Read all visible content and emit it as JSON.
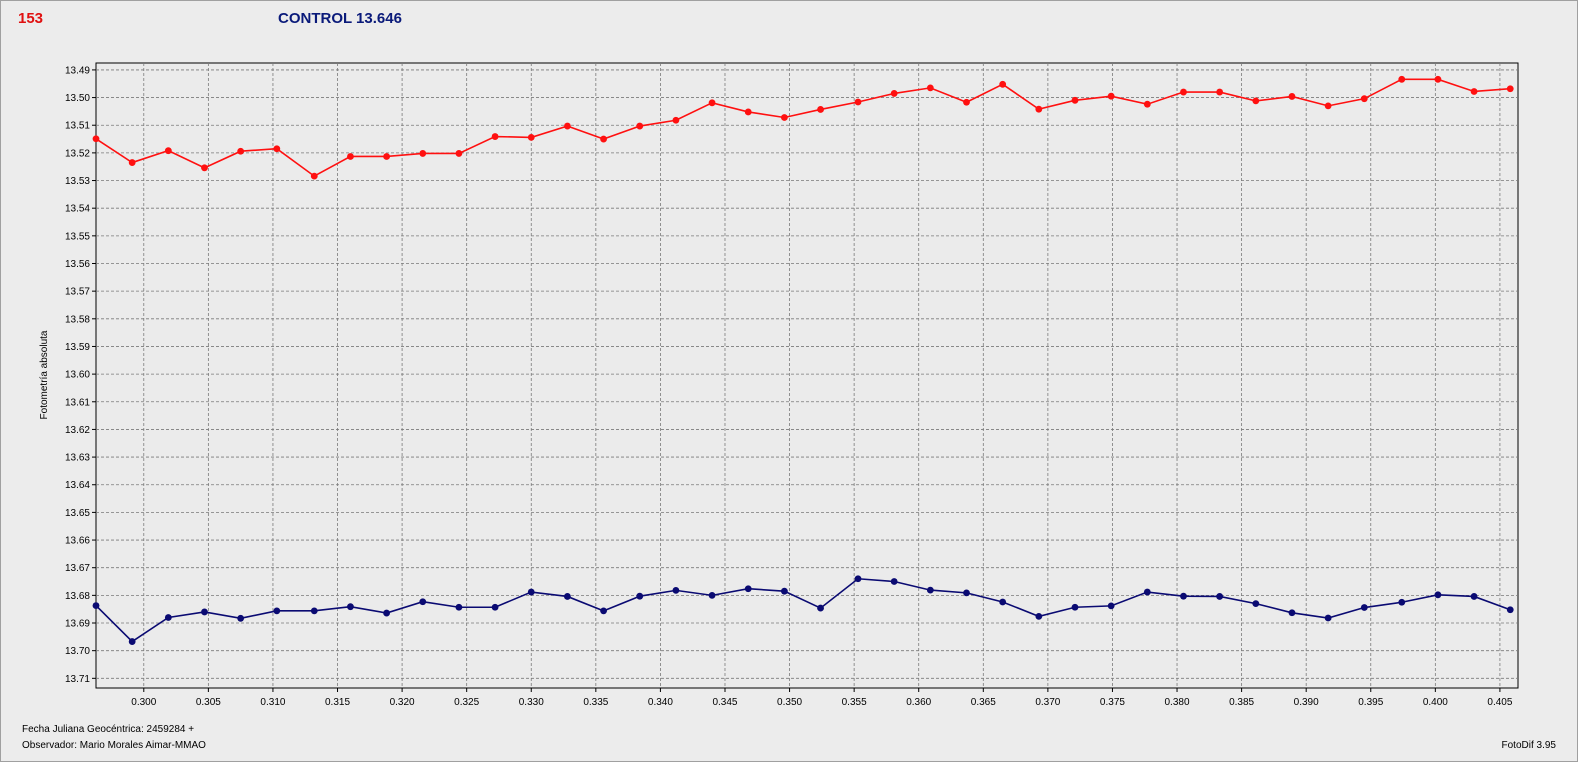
{
  "header": {
    "star_id": "153",
    "control_label": "CONTROL 13.646"
  },
  "footer": {
    "jd_label": "Fecha Juliana Geocéntrica: 2459284 +",
    "observer_label": "Observador: Mario Morales Aimar-MMAO",
    "software_label": "FotoDif 3.95"
  },
  "colors": {
    "series_red": "#ff1010",
    "series_blue": "#0a0a72",
    "plot_bg": "#ebebeb",
    "grid": "#7a7a7a"
  },
  "chart_data": {
    "type": "line",
    "title": "",
    "xlabel": "",
    "ylabel": "Fotometría absoluta",
    "xlim": [
      0.2963,
      0.4064
    ],
    "ylim": [
      13.4875,
      13.7135
    ],
    "y_inverted": true,
    "grid": true,
    "x_ticks": [
      "0.300",
      "0.305",
      "0.310",
      "0.315",
      "0.320",
      "0.325",
      "0.330",
      "0.335",
      "0.340",
      "0.345",
      "0.350",
      "0.355",
      "0.360",
      "0.365",
      "0.370",
      "0.375",
      "0.380",
      "0.385",
      "0.390",
      "0.395",
      "0.400",
      "0.405"
    ],
    "y_ticks": [
      "13.49",
      "13.50",
      "13.51",
      "13.52",
      "13.53",
      "13.54",
      "13.55",
      "13.56",
      "13.57",
      "13.58",
      "13.59",
      "13.60",
      "13.61",
      "13.62",
      "13.63",
      "13.64",
      "13.65",
      "13.66",
      "13.67",
      "13.68",
      "13.69",
      "13.70",
      "13.71"
    ],
    "x": [
      0.2963,
      0.2991,
      0.3019,
      0.3047,
      0.3075,
      0.3103,
      0.3132,
      0.316,
      0.3188,
      0.3216,
      0.3244,
      0.3272,
      0.33,
      0.3328,
      0.3356,
      0.3384,
      0.3412,
      0.344,
      0.3468,
      0.3496,
      0.3524,
      0.3553,
      0.3581,
      0.3609,
      0.3637,
      0.3665,
      0.3693,
      0.3721,
      0.3749,
      0.3777,
      0.3805,
      0.3833,
      0.3861,
      0.3889,
      0.3917,
      0.3945,
      0.3974,
      0.4002,
      0.403,
      0.4058
    ],
    "series": [
      {
        "color": "#ff1010",
        "values": [
          13.5149,
          13.5235,
          13.5192,
          13.5254,
          13.5194,
          13.5185,
          13.5284,
          13.5213,
          13.5213,
          13.5202,
          13.5202,
          13.5141,
          13.5144,
          13.5103,
          13.515,
          13.5103,
          13.5082,
          13.5019,
          13.5052,
          13.5072,
          13.5043,
          13.5016,
          13.4985,
          13.4965,
          13.5017,
          13.4952,
          13.5042,
          13.501,
          13.4995,
          13.5024,
          13.498,
          13.498,
          13.5012,
          13.4996,
          13.503,
          13.5004,
          13.4934,
          13.4934,
          13.4978,
          13.4968
        ]
      },
      {
        "color": "#0a0a72",
        "values": [
          13.6837,
          13.6967,
          13.688,
          13.686,
          13.6883,
          13.6856,
          13.6856,
          13.6841,
          13.6864,
          13.6823,
          13.6843,
          13.6843,
          13.6788,
          13.6804,
          13.6856,
          13.6803,
          13.6782,
          13.68,
          13.6776,
          13.6785,
          13.6846,
          13.674,
          13.675,
          13.6781,
          13.6791,
          13.6824,
          13.6876,
          13.6843,
          13.6838,
          13.6788,
          13.6803,
          13.6804,
          13.683,
          13.6863,
          13.6882,
          13.6844,
          13.6825,
          13.6798,
          13.6804,
          13.6852
        ]
      }
    ]
  }
}
